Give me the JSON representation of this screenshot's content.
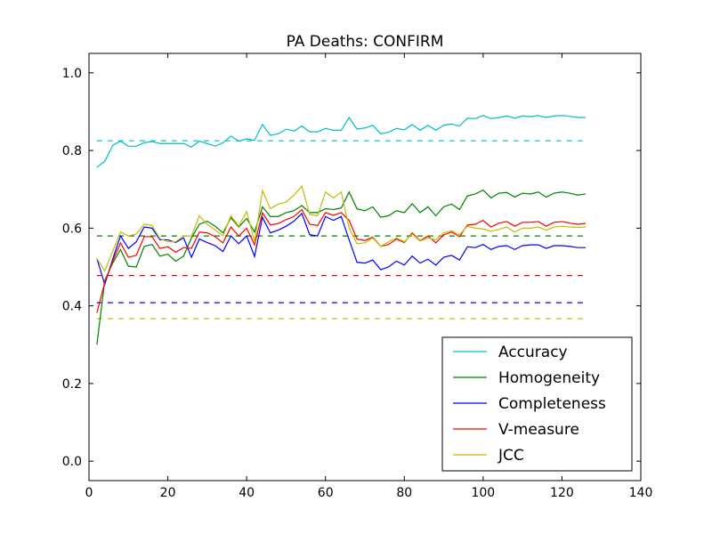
{
  "chart_data": {
    "type": "line",
    "title": "PA Deaths: CONFIRM",
    "xlabel": "",
    "ylabel": "",
    "xlim": [
      0,
      140
    ],
    "ylim": [
      -0.05,
      1.05
    ],
    "xticks": [
      0,
      20,
      40,
      60,
      80,
      100,
      120,
      140
    ],
    "yticks": [
      0.0,
      0.2,
      0.4,
      0.6,
      0.8,
      1.0
    ],
    "xtick_labels": [
      "0",
      "20",
      "40",
      "60",
      "80",
      "100",
      "120",
      "140"
    ],
    "ytick_labels": [
      "0.0",
      "0.2",
      "0.4",
      "0.6",
      "0.8",
      "1.0"
    ],
    "grid": false,
    "legend_position": "bottom-right",
    "x": [
      2,
      4,
      6,
      8,
      10,
      12,
      14,
      16,
      18,
      20,
      22,
      24,
      26,
      28,
      30,
      32,
      34,
      36,
      38,
      40,
      42,
      44,
      46,
      48,
      50,
      52,
      54,
      56,
      58,
      60,
      62,
      64,
      66,
      68,
      70,
      72,
      74,
      76,
      78,
      80,
      82,
      84,
      86,
      88,
      90,
      92,
      94,
      96,
      98,
      100,
      102,
      104,
      106,
      108,
      110,
      112,
      114,
      116,
      118,
      120,
      122,
      124,
      126
    ],
    "series": [
      {
        "name": "Accuracy",
        "color": "#00bfbf",
        "values": [
          0.757,
          0.772,
          0.813,
          0.824,
          0.811,
          0.811,
          0.82,
          0.823,
          0.818,
          0.818,
          0.818,
          0.818,
          0.809,
          0.824,
          0.818,
          0.811,
          0.82,
          0.837,
          0.824,
          0.83,
          0.826,
          0.867,
          0.839,
          0.843,
          0.855,
          0.85,
          0.863,
          0.848,
          0.848,
          0.857,
          0.852,
          0.852,
          0.885,
          0.855,
          0.858,
          0.865,
          0.843,
          0.847,
          0.857,
          0.853,
          0.867,
          0.852,
          0.865,
          0.852,
          0.865,
          0.868,
          0.863,
          0.883,
          0.882,
          0.89,
          0.882,
          0.885,
          0.889,
          0.883,
          0.889,
          0.887,
          0.89,
          0.885,
          0.889,
          0.89,
          0.888,
          0.885,
          0.885
        ]
      },
      {
        "name": "Homogeneity",
        "color": "#008000",
        "values": [
          0.3,
          0.465,
          0.51,
          0.545,
          0.502,
          0.5,
          0.553,
          0.558,
          0.528,
          0.533,
          0.515,
          0.528,
          0.575,
          0.61,
          0.618,
          0.605,
          0.588,
          0.627,
          0.603,
          0.625,
          0.59,
          0.655,
          0.63,
          0.63,
          0.64,
          0.645,
          0.658,
          0.64,
          0.64,
          0.65,
          0.648,
          0.652,
          0.693,
          0.65,
          0.645,
          0.655,
          0.628,
          0.632,
          0.645,
          0.64,
          0.663,
          0.64,
          0.655,
          0.632,
          0.655,
          0.662,
          0.648,
          0.683,
          0.688,
          0.698,
          0.678,
          0.69,
          0.692,
          0.68,
          0.69,
          0.688,
          0.693,
          0.68,
          0.69,
          0.693,
          0.69,
          0.685,
          0.688
        ]
      },
      {
        "name": "Completeness",
        "color": "#0000ff",
        "values": [
          0.522,
          0.455,
          0.52,
          0.58,
          0.548,
          0.565,
          0.603,
          0.6,
          0.57,
          0.57,
          0.563,
          0.575,
          0.525,
          0.572,
          0.563,
          0.555,
          0.54,
          0.58,
          0.56,
          0.58,
          0.527,
          0.628,
          0.588,
          0.595,
          0.605,
          0.618,
          0.638,
          0.583,
          0.58,
          0.63,
          0.62,
          0.63,
          0.57,
          0.512,
          0.51,
          0.518,
          0.493,
          0.5,
          0.515,
          0.505,
          0.528,
          0.51,
          0.52,
          0.505,
          0.525,
          0.53,
          0.518,
          0.552,
          0.55,
          0.558,
          0.545,
          0.553,
          0.555,
          0.545,
          0.555,
          0.557,
          0.557,
          0.548,
          0.555,
          0.555,
          0.553,
          0.55,
          0.55
        ]
      },
      {
        "name": "V-measure",
        "color": "#ff0000",
        "values": [
          0.382,
          0.46,
          0.515,
          0.562,
          0.525,
          0.53,
          0.578,
          0.578,
          0.548,
          0.552,
          0.538,
          0.55,
          0.548,
          0.59,
          0.588,
          0.578,
          0.562,
          0.603,
          0.58,
          0.6,
          0.557,
          0.64,
          0.608,
          0.612,
          0.622,
          0.63,
          0.648,
          0.61,
          0.607,
          0.64,
          0.633,
          0.64,
          0.62,
          0.572,
          0.568,
          0.577,
          0.553,
          0.558,
          0.572,
          0.563,
          0.588,
          0.568,
          0.58,
          0.562,
          0.583,
          0.59,
          0.578,
          0.608,
          0.61,
          0.62,
          0.603,
          0.613,
          0.617,
          0.605,
          0.615,
          0.615,
          0.617,
          0.605,
          0.615,
          0.617,
          0.613,
          0.61,
          0.612
        ]
      },
      {
        "name": "JCC",
        "color": "#bfbf00",
        "values": [
          0.522,
          0.49,
          0.54,
          0.59,
          0.58,
          0.585,
          0.61,
          0.607,
          0.573,
          0.565,
          0.565,
          0.58,
          0.58,
          0.632,
          0.61,
          0.595,
          0.58,
          0.632,
          0.605,
          0.643,
          0.565,
          0.697,
          0.65,
          0.662,
          0.667,
          0.685,
          0.708,
          0.635,
          0.632,
          0.693,
          0.678,
          0.693,
          0.6,
          0.56,
          0.562,
          0.575,
          0.553,
          0.565,
          0.575,
          0.565,
          0.585,
          0.567,
          0.575,
          0.57,
          0.588,
          0.593,
          0.583,
          0.605,
          0.6,
          0.598,
          0.592,
          0.597,
          0.603,
          0.59,
          0.6,
          0.6,
          0.603,
          0.595,
          0.603,
          0.605,
          0.603,
          0.602,
          0.603
        ]
      }
    ],
    "baselines": [
      {
        "color": "#00bfbf",
        "value": 0.825,
        "x_range": [
          2,
          126
        ]
      },
      {
        "color": "#008000",
        "value": 0.58,
        "x_range": [
          2,
          126
        ]
      },
      {
        "color": "#ff0000",
        "value": 0.478,
        "x_range": [
          2,
          126
        ]
      },
      {
        "color": "#0000ff",
        "value": 0.408,
        "x_range": [
          2,
          126
        ]
      },
      {
        "color": "#bfbf00",
        "value": 0.367,
        "x_range": [
          2,
          126
        ]
      }
    ]
  }
}
